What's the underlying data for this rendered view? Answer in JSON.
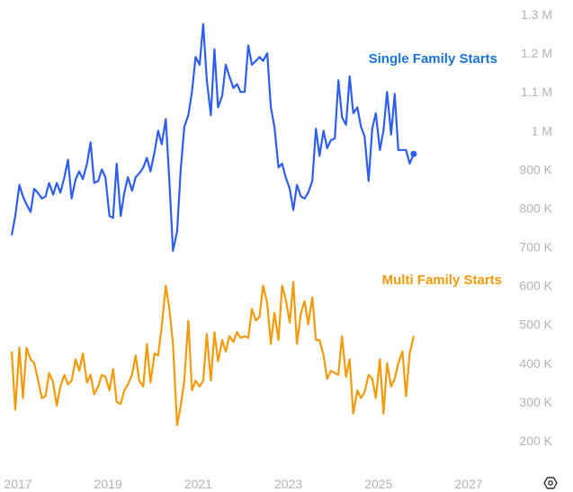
{
  "chart_data": {
    "type": "line",
    "ylim": [
      150000,
      1300000
    ],
    "yticks": [
      {
        "value": 1300000,
        "label": "1.3 M"
      },
      {
        "value": 1200000,
        "label": "1.2 M"
      },
      {
        "value": 1100000,
        "label": "1.1 M"
      },
      {
        "value": 1000000,
        "label": "1 M"
      },
      {
        "value": 900000,
        "label": "900 K"
      },
      {
        "value": 800000,
        "label": "800 K"
      },
      {
        "value": 700000,
        "label": "700 K"
      },
      {
        "value": 600000,
        "label": "600 K"
      },
      {
        "value": 500000,
        "label": "500 K"
      },
      {
        "value": 400000,
        "label": "400 K"
      },
      {
        "value": 300000,
        "label": "300 K"
      },
      {
        "value": 200000,
        "label": "200 K"
      }
    ],
    "xlim": [
      2017.0,
      2028.0
    ],
    "xticks": [
      {
        "value": 2017.0,
        "label": "2017"
      },
      {
        "value": 2019.0,
        "label": "2019"
      },
      {
        "value": 2021.0,
        "label": "2021"
      },
      {
        "value": 2023.0,
        "label": "2023"
      },
      {
        "value": 2025.0,
        "label": "2025"
      },
      {
        "value": 2027.0,
        "label": "2027"
      }
    ],
    "grid": false,
    "legend": "inline labels",
    "series": [
      {
        "name": "Single Family Starts",
        "color": "#2e5ef0",
        "label_color": "#1a73d9",
        "end_marker": true,
        "values": [
          [
            2016.86,
            730000
          ],
          [
            2016.94,
            780000
          ],
          [
            2017.03,
            860000
          ],
          [
            2017.11,
            830000
          ],
          [
            2017.19,
            810000
          ],
          [
            2017.28,
            790000
          ],
          [
            2017.36,
            850000
          ],
          [
            2017.44,
            840000
          ],
          [
            2017.53,
            825000
          ],
          [
            2017.61,
            830000
          ],
          [
            2017.69,
            865000
          ],
          [
            2017.78,
            835000
          ],
          [
            2017.86,
            865000
          ],
          [
            2017.94,
            840000
          ],
          [
            2018.03,
            880000
          ],
          [
            2018.11,
            925000
          ],
          [
            2018.19,
            825000
          ],
          [
            2018.28,
            875000
          ],
          [
            2018.36,
            895000
          ],
          [
            2018.44,
            875000
          ],
          [
            2018.53,
            915000
          ],
          [
            2018.61,
            970000
          ],
          [
            2018.69,
            865000
          ],
          [
            2018.78,
            870000
          ],
          [
            2018.86,
            900000
          ],
          [
            2018.94,
            880000
          ],
          [
            2019.03,
            780000
          ],
          [
            2019.11,
            775000
          ],
          [
            2019.19,
            915000
          ],
          [
            2019.28,
            780000
          ],
          [
            2019.36,
            840000
          ],
          [
            2019.44,
            880000
          ],
          [
            2019.53,
            845000
          ],
          [
            2019.61,
            880000
          ],
          [
            2019.69,
            890000
          ],
          [
            2019.78,
            905000
          ],
          [
            2019.86,
            930000
          ],
          [
            2019.94,
            895000
          ],
          [
            2020.03,
            945000
          ],
          [
            2020.11,
            1000000
          ],
          [
            2020.19,
            965000
          ],
          [
            2020.28,
            1030000
          ],
          [
            2020.36,
            870000
          ],
          [
            2020.44,
            690000
          ],
          [
            2020.53,
            740000
          ],
          [
            2020.61,
            900000
          ],
          [
            2020.69,
            1010000
          ],
          [
            2020.78,
            1040000
          ],
          [
            2020.86,
            1100000
          ],
          [
            2020.94,
            1190000
          ],
          [
            2021.03,
            1170000
          ],
          [
            2021.11,
            1275000
          ],
          [
            2021.19,
            1130000
          ],
          [
            2021.28,
            1040000
          ],
          [
            2021.36,
            1210000
          ],
          [
            2021.44,
            1060000
          ],
          [
            2021.53,
            1090000
          ],
          [
            2021.61,
            1170000
          ],
          [
            2021.69,
            1140000
          ],
          [
            2021.78,
            1110000
          ],
          [
            2021.86,
            1120000
          ],
          [
            2021.94,
            1100000
          ],
          [
            2022.03,
            1100000
          ],
          [
            2022.11,
            1220000
          ],
          [
            2022.19,
            1170000
          ],
          [
            2022.28,
            1180000
          ],
          [
            2022.36,
            1190000
          ],
          [
            2022.44,
            1180000
          ],
          [
            2022.53,
            1200000
          ],
          [
            2022.61,
            1060000
          ],
          [
            2022.69,
            1010000
          ],
          [
            2022.78,
            905000
          ],
          [
            2022.86,
            915000
          ],
          [
            2022.94,
            880000
          ],
          [
            2023.03,
            850000
          ],
          [
            2023.11,
            795000
          ],
          [
            2023.19,
            860000
          ],
          [
            2023.28,
            830000
          ],
          [
            2023.36,
            825000
          ],
          [
            2023.44,
            840000
          ],
          [
            2023.53,
            870000
          ],
          [
            2023.61,
            1005000
          ],
          [
            2023.69,
            935000
          ],
          [
            2023.78,
            1000000
          ],
          [
            2023.86,
            955000
          ],
          [
            2023.94,
            975000
          ],
          [
            2024.03,
            980000
          ],
          [
            2024.11,
            1130000
          ],
          [
            2024.19,
            1035000
          ],
          [
            2024.28,
            1015000
          ],
          [
            2024.36,
            1140000
          ],
          [
            2024.44,
            1045000
          ],
          [
            2024.53,
            1060000
          ],
          [
            2024.61,
            1010000
          ],
          [
            2024.69,
            985000
          ],
          [
            2024.78,
            870000
          ],
          [
            2024.86,
            1005000
          ],
          [
            2024.94,
            1045000
          ],
          [
            2025.03,
            950000
          ],
          [
            2025.11,
            1000000
          ],
          [
            2025.19,
            1100000
          ],
          [
            2025.28,
            990000
          ],
          [
            2025.36,
            1095000
          ],
          [
            2025.44,
            950000
          ],
          [
            2025.53,
            950000
          ],
          [
            2025.61,
            950000
          ],
          [
            2025.69,
            915000
          ],
          [
            2025.78,
            940000
          ]
        ]
      },
      {
        "name": "Multi Family Starts",
        "color": "#f29a0a",
        "label_color": "#f29a0a",
        "end_marker": false,
        "values": [
          [
            2016.86,
            430000
          ],
          [
            2016.94,
            280000
          ],
          [
            2017.03,
            440000
          ],
          [
            2017.11,
            310000
          ],
          [
            2017.19,
            440000
          ],
          [
            2017.28,
            410000
          ],
          [
            2017.36,
            400000
          ],
          [
            2017.44,
            360000
          ],
          [
            2017.53,
            310000
          ],
          [
            2017.61,
            315000
          ],
          [
            2017.69,
            375000
          ],
          [
            2017.78,
            350000
          ],
          [
            2017.86,
            290000
          ],
          [
            2017.94,
            340000
          ],
          [
            2018.03,
            370000
          ],
          [
            2018.11,
            345000
          ],
          [
            2018.19,
            355000
          ],
          [
            2018.28,
            410000
          ],
          [
            2018.36,
            380000
          ],
          [
            2018.44,
            425000
          ],
          [
            2018.53,
            350000
          ],
          [
            2018.61,
            370000
          ],
          [
            2018.69,
            320000
          ],
          [
            2018.78,
            340000
          ],
          [
            2018.86,
            370000
          ],
          [
            2018.94,
            365000
          ],
          [
            2019.03,
            330000
          ],
          [
            2019.11,
            385000
          ],
          [
            2019.19,
            300000
          ],
          [
            2019.28,
            295000
          ],
          [
            2019.36,
            330000
          ],
          [
            2019.44,
            345000
          ],
          [
            2019.53,
            370000
          ],
          [
            2019.61,
            420000
          ],
          [
            2019.69,
            355000
          ],
          [
            2019.78,
            340000
          ],
          [
            2019.86,
            450000
          ],
          [
            2019.94,
            350000
          ],
          [
            2020.03,
            425000
          ],
          [
            2020.11,
            420000
          ],
          [
            2020.19,
            495000
          ],
          [
            2020.28,
            600000
          ],
          [
            2020.36,
            540000
          ],
          [
            2020.44,
            450000
          ],
          [
            2020.53,
            240000
          ],
          [
            2020.61,
            290000
          ],
          [
            2020.69,
            355000
          ],
          [
            2020.78,
            510000
          ],
          [
            2020.86,
            330000
          ],
          [
            2020.94,
            355000
          ],
          [
            2021.03,
            340000
          ],
          [
            2021.11,
            355000
          ],
          [
            2021.19,
            475000
          ],
          [
            2021.28,
            355000
          ],
          [
            2021.36,
            480000
          ],
          [
            2021.44,
            405000
          ],
          [
            2021.53,
            460000
          ],
          [
            2021.61,
            430000
          ],
          [
            2021.69,
            470000
          ],
          [
            2021.78,
            455000
          ],
          [
            2021.86,
            480000
          ],
          [
            2021.94,
            465000
          ],
          [
            2022.03,
            470000
          ],
          [
            2022.11,
            465000
          ],
          [
            2022.19,
            540000
          ],
          [
            2022.28,
            510000
          ],
          [
            2022.36,
            520000
          ],
          [
            2022.44,
            600000
          ],
          [
            2022.53,
            555000
          ],
          [
            2022.61,
            450000
          ],
          [
            2022.69,
            530000
          ],
          [
            2022.78,
            460000
          ],
          [
            2022.86,
            600000
          ],
          [
            2022.94,
            565000
          ],
          [
            2023.03,
            505000
          ],
          [
            2023.11,
            610000
          ],
          [
            2023.19,
            450000
          ],
          [
            2023.28,
            530000
          ],
          [
            2023.36,
            560000
          ],
          [
            2023.44,
            500000
          ],
          [
            2023.53,
            570000
          ],
          [
            2023.61,
            460000
          ],
          [
            2023.69,
            460000
          ],
          [
            2023.78,
            420000
          ],
          [
            2023.86,
            360000
          ],
          [
            2023.94,
            380000
          ],
          [
            2024.03,
            375000
          ],
          [
            2024.11,
            370000
          ],
          [
            2024.19,
            470000
          ],
          [
            2024.28,
            365000
          ],
          [
            2024.36,
            410000
          ],
          [
            2024.44,
            270000
          ],
          [
            2024.53,
            330000
          ],
          [
            2024.61,
            310000
          ],
          [
            2024.69,
            325000
          ],
          [
            2024.78,
            370000
          ],
          [
            2024.86,
            360000
          ],
          [
            2024.94,
            310000
          ],
          [
            2025.03,
            410000
          ],
          [
            2025.11,
            270000
          ],
          [
            2025.19,
            400000
          ],
          [
            2025.28,
            340000
          ],
          [
            2025.36,
            360000
          ],
          [
            2025.44,
            400000
          ],
          [
            2025.53,
            430000
          ],
          [
            2025.61,
            315000
          ],
          [
            2025.69,
            425000
          ],
          [
            2025.78,
            470000
          ]
        ]
      }
    ]
  },
  "labels": {
    "single_family": "Single Family Starts",
    "multi_family": "Multi Family Starts"
  },
  "toolbar": {
    "settings_icon": "gear-icon"
  }
}
